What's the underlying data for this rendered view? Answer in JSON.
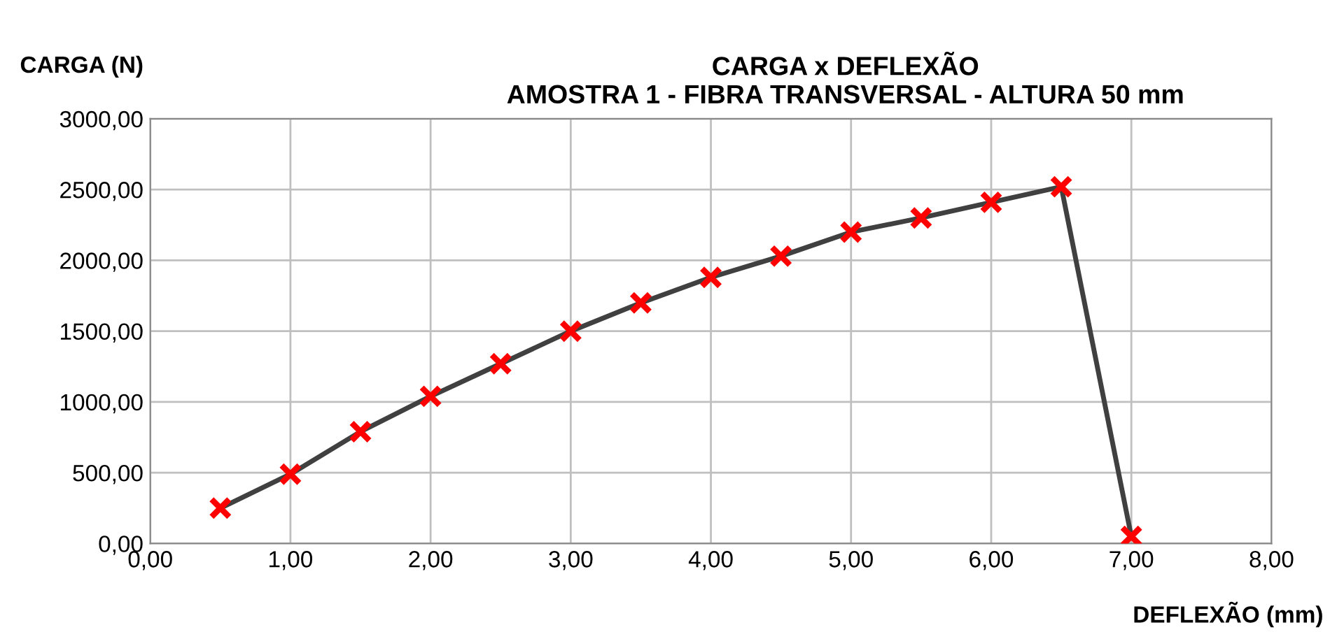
{
  "chart_data": {
    "type": "line",
    "title": "CARGA x DEFLEXÃO\nAMOSTRA 1 - FIBRA TRANSVERSAL - ALTURA 50 mm",
    "xlabel": "DEFLEXÃO (mm)",
    "ylabel": "CARGA (N)",
    "x": [
      0.5,
      1.0,
      1.5,
      2.0,
      2.5,
      3.0,
      3.5,
      4.0,
      4.5,
      5.0,
      5.5,
      6.0,
      6.5,
      7.0
    ],
    "series": [
      {
        "color": "#404040",
        "marker": "none",
        "values": [
          250,
          490,
          790,
          1040,
          1270,
          1500,
          1700,
          1880,
          2030,
          2200,
          2300,
          2410,
          2520,
          50
        ]
      },
      {
        "type": "scatter",
        "color": "#ff0000",
        "marker": "cross",
        "values": [
          250,
          490,
          790,
          1040,
          1270,
          1500,
          1700,
          1880,
          2030,
          2200,
          2300,
          2410,
          2520,
          50
        ]
      }
    ],
    "xlim": [
      0,
      8
    ],
    "ylim": [
      0,
      3000
    ],
    "xticks": [
      {
        "value": 0,
        "label": "0,00"
      },
      {
        "value": 1,
        "label": "1,00"
      },
      {
        "value": 2,
        "label": "2,00"
      },
      {
        "value": 3,
        "label": "3,00"
      },
      {
        "value": 4,
        "label": "4,00"
      },
      {
        "value": 5,
        "label": "5,00"
      },
      {
        "value": 6,
        "label": "6,00"
      },
      {
        "value": 7,
        "label": "7,00"
      },
      {
        "value": 8,
        "label": "8,00"
      }
    ],
    "yticks": [
      {
        "value": 0,
        "label": "0,00"
      },
      {
        "value": 500,
        "label": "500,00"
      },
      {
        "value": 1000,
        "label": "1000,00"
      },
      {
        "value": 1500,
        "label": "1500,00"
      },
      {
        "value": 2000,
        "label": "2000,00"
      },
      {
        "value": 2500,
        "label": "2500,00"
      },
      {
        "value": 3000,
        "label": "3000,00"
      }
    ],
    "grid": true,
    "legend": false
  }
}
